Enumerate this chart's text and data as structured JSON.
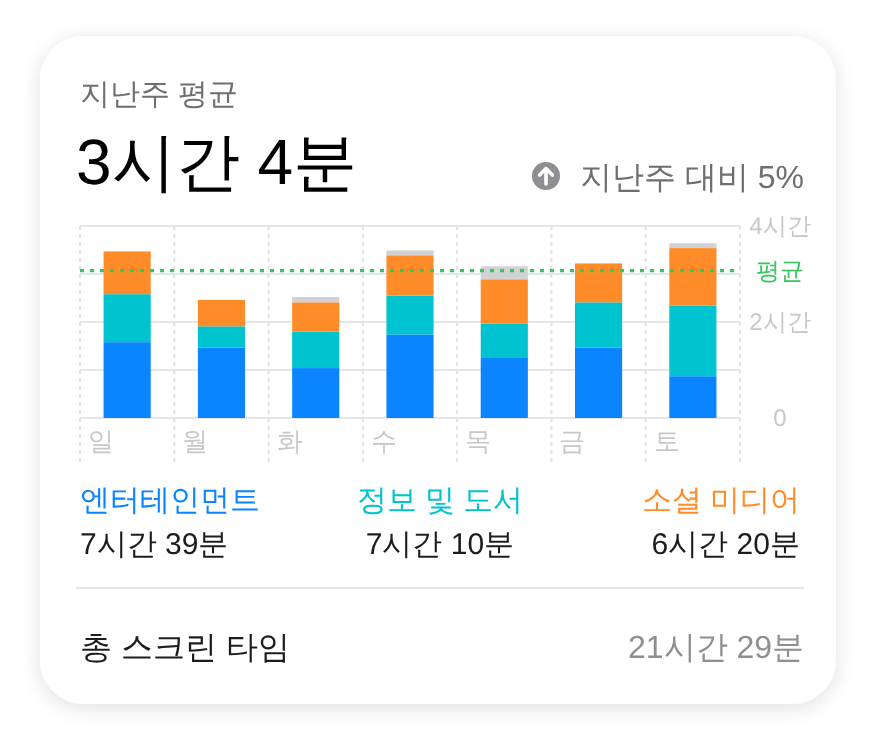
{
  "chart_data": {
    "type": "bar",
    "stacked": true,
    "title": "지난주 평균",
    "subtitle": "3시간 4분",
    "categories": [
      "일",
      "월",
      "화",
      "수",
      "목",
      "금",
      "토"
    ],
    "series": [
      {
        "name": "엔터테인먼트",
        "color": "#0a84ff",
        "values": [
          1.58,
          1.47,
          1.04,
          1.74,
          1.25,
          1.47,
          0.87
        ]
      },
      {
        "name": "정보 및 도서",
        "color": "#00c3d0",
        "values": [
          1.0,
          0.44,
          0.76,
          0.81,
          0.72,
          0.94,
          1.47
        ]
      },
      {
        "name": "소셜 미디어",
        "color": "#ff8c28",
        "values": [
          0.89,
          0.55,
          0.61,
          0.84,
          0.92,
          0.81,
          1.2
        ]
      },
      {
        "color": "#d1d1d6",
        "values": [
          null,
          null,
          0.11,
          0.1,
          0.27,
          null,
          0.1
        ]
      }
    ],
    "ylim": [
      0,
      4
    ],
    "yticks": [
      0,
      {
        "value": 1,
        "label": null
      },
      {
        "value": 2,
        "label": "2시간"
      },
      {
        "value": 3,
        "label": null
      },
      {
        "value": 4,
        "label": "4시간"
      }
    ],
    "grid": true,
    "legend": "bottom",
    "ref_lines": [
      {
        "axis": "y",
        "value": 3.07,
        "label": "평균",
        "color": "#34c759",
        "line_style": "dotted"
      }
    ],
    "annotations": [
      "지난주 대비 5%",
      "7시간 39분",
      "7시간 10분",
      "6시간 20분",
      "총 스크린 타임",
      "21시간 29분"
    ]
  }
}
